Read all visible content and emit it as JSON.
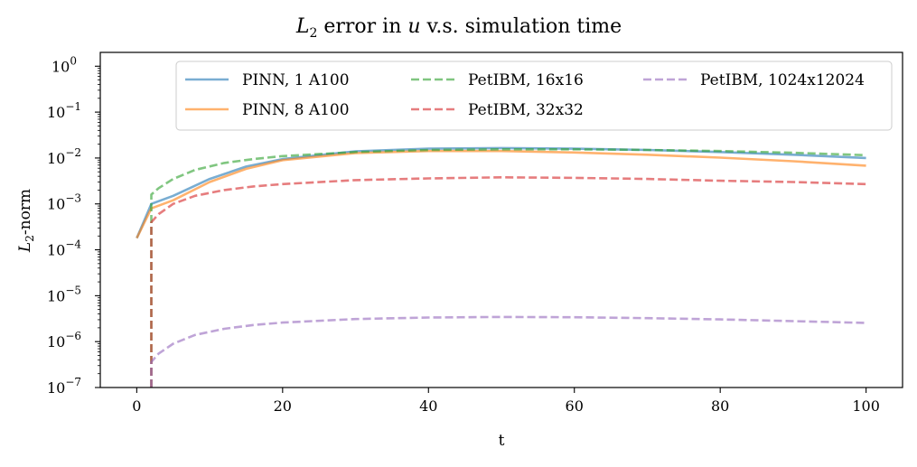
{
  "chart_data": {
    "type": "line",
    "title_prefix": "L",
    "title_sub": "2",
    "title_mid": " error in ",
    "title_var": "u",
    "title_suffix": " v.s. simulation time",
    "xlabel": "t",
    "ylabel_prefix": "L",
    "ylabel_sub": "2",
    "ylabel_suffix": "-norm",
    "xlim": [
      -5,
      105
    ],
    "ylim": [
      1e-07,
      2
    ],
    "y_scale": "log",
    "x_ticks": [
      0,
      20,
      40,
      60,
      80,
      100
    ],
    "x_tick_labels": [
      "0",
      "20",
      "40",
      "60",
      "80",
      "100"
    ],
    "y_ticks": [
      1e-07,
      1e-06,
      1e-05,
      0.0001,
      0.001,
      0.01,
      0.1,
      1.0
    ],
    "y_tick_base": "10",
    "y_tick_exponents": [
      "−7",
      "−6",
      "−5",
      "−4",
      "−3",
      "−2",
      "−1",
      "0"
    ],
    "legend_position": "top-right",
    "legend_columns": 3,
    "series": [
      {
        "name": "PINN, 1 A100",
        "color": "#1f77b4",
        "style": "solid",
        "x": [
          0,
          2,
          5,
          10,
          15,
          20,
          30,
          40,
          50,
          60,
          70,
          80,
          90,
          100
        ],
        "y": [
          0.00018,
          0.001,
          0.0015,
          0.0035,
          0.0065,
          0.0095,
          0.014,
          0.016,
          0.0165,
          0.016,
          0.015,
          0.0135,
          0.0118,
          0.01
        ]
      },
      {
        "name": "PINN, 8 A100",
        "color": "#ff7f0e",
        "style": "solid",
        "x": [
          0,
          2,
          5,
          10,
          15,
          20,
          30,
          40,
          50,
          60,
          70,
          80,
          90,
          100
        ],
        "y": [
          0.00018,
          0.0008,
          0.0012,
          0.003,
          0.0058,
          0.009,
          0.0128,
          0.0142,
          0.0142,
          0.0132,
          0.0118,
          0.0102,
          0.0085,
          0.0068
        ]
      },
      {
        "name": "PetIBM, 16x16",
        "color": "#2ca02c",
        "style": "dashed",
        "x": [
          2,
          2,
          3,
          5,
          8,
          12,
          16,
          20,
          30,
          40,
          50,
          60,
          70,
          80,
          90,
          100
        ],
        "y": [
          1e-07,
          0.0016,
          0.0022,
          0.0035,
          0.0055,
          0.0078,
          0.0095,
          0.011,
          0.0135,
          0.015,
          0.0155,
          0.0155,
          0.015,
          0.0142,
          0.013,
          0.0115
        ]
      },
      {
        "name": "PetIBM, 32x32",
        "color": "#d62728",
        "style": "dashed",
        "x": [
          2,
          2,
          3,
          5,
          8,
          12,
          16,
          20,
          30,
          40,
          50,
          60,
          70,
          80,
          90,
          100
        ],
        "y": [
          1e-07,
          0.0004,
          0.0006,
          0.001,
          0.0015,
          0.002,
          0.0024,
          0.0027,
          0.0033,
          0.0036,
          0.0038,
          0.0037,
          0.0035,
          0.0032,
          0.003,
          0.0027
        ]
      },
      {
        "name": "PetIBM, 1024x12024",
        "color": "#9467bd",
        "style": "dashed",
        "x": [
          2,
          2,
          3,
          5,
          8,
          12,
          16,
          20,
          30,
          40,
          50,
          60,
          70,
          80,
          90,
          100
        ],
        "y": [
          1e-07,
          3.6e-07,
          5.5e-07,
          9e-07,
          1.4e-06,
          1.9e-06,
          2.3e-06,
          2.6e-06,
          3.1e-06,
          3.35e-06,
          3.45e-06,
          3.4e-06,
          3.25e-06,
          3.05e-06,
          2.8e-06,
          2.55e-06
        ]
      }
    ]
  }
}
